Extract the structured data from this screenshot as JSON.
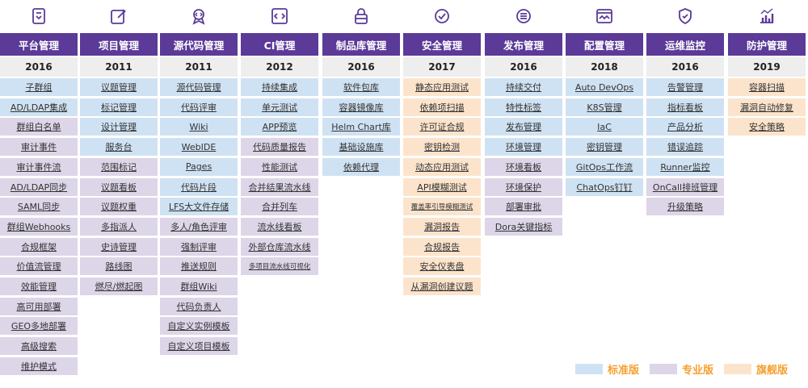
{
  "columns": [
    {
      "title": "平台管理",
      "year": "2016",
      "icon": "platform-icon",
      "items": [
        {
          "label": "子群组",
          "tier": "std"
        },
        {
          "label": "AD/LDAP集成",
          "tier": "std"
        },
        {
          "label": "群组白名单",
          "tier": "pro"
        },
        {
          "label": "审计事件",
          "tier": "pro"
        },
        {
          "label": "审计事件流",
          "tier": "pro"
        },
        {
          "label": "AD/LDAP同步",
          "tier": "pro"
        },
        {
          "label": "SAML同步",
          "tier": "pro"
        },
        {
          "label": "群组Webhooks",
          "tier": "pro"
        },
        {
          "label": "合规框架",
          "tier": "pro"
        },
        {
          "label": "价值流管理",
          "tier": "pro"
        },
        {
          "label": "效能管理",
          "tier": "pro"
        },
        {
          "label": "高可用部署",
          "tier": "pro"
        },
        {
          "label": "GEO多地部署",
          "tier": "pro"
        },
        {
          "label": "高级搜索",
          "tier": "pro"
        },
        {
          "label": "维护模式",
          "tier": "pro"
        }
      ]
    },
    {
      "title": "项目管理",
      "year": "2011",
      "icon": "edit-icon",
      "items": [
        {
          "label": "议题管理",
          "tier": "std"
        },
        {
          "label": "标记管理",
          "tier": "std"
        },
        {
          "label": "设计管理",
          "tier": "std"
        },
        {
          "label": "服务台",
          "tier": "std"
        },
        {
          "label": "范围标记",
          "tier": "pro"
        },
        {
          "label": "议题看板",
          "tier": "pro"
        },
        {
          "label": "议题权重",
          "tier": "pro"
        },
        {
          "label": "多指派人",
          "tier": "pro"
        },
        {
          "label": "史诗管理",
          "tier": "pro"
        },
        {
          "label": "路线图",
          "tier": "pro"
        },
        {
          "label": "燃尽/燃起图",
          "tier": "pro"
        }
      ]
    },
    {
      "title": "源代码管理",
      "year": "2011",
      "icon": "code-badge-icon",
      "items": [
        {
          "label": "源代码管理",
          "tier": "std"
        },
        {
          "label": "代码评审",
          "tier": "std"
        },
        {
          "label": "Wiki",
          "tier": "std"
        },
        {
          "label": "WebIDE",
          "tier": "std"
        },
        {
          "label": "Pages",
          "tier": "std"
        },
        {
          "label": "代码片段",
          "tier": "std"
        },
        {
          "label": "LFS大文件存储",
          "tier": "std"
        },
        {
          "label": "多人/角色评审",
          "tier": "pro"
        },
        {
          "label": "强制评审",
          "tier": "pro"
        },
        {
          "label": "推送规则",
          "tier": "pro"
        },
        {
          "label": "群组Wiki",
          "tier": "pro"
        },
        {
          "label": "代码负责人",
          "tier": "pro"
        },
        {
          "label": "自定义实例模板",
          "tier": "pro"
        },
        {
          "label": "自定义项目模板",
          "tier": "pro"
        }
      ]
    },
    {
      "title": "CI管理",
      "year": "2012",
      "icon": "code-window-icon",
      "items": [
        {
          "label": "持续集成",
          "tier": "std"
        },
        {
          "label": "单元测试",
          "tier": "std"
        },
        {
          "label": "APP预览",
          "tier": "std"
        },
        {
          "label": "代码质量报告",
          "tier": "pro"
        },
        {
          "label": "性能测试",
          "tier": "pro"
        },
        {
          "label": "合并结果流水线",
          "tier": "pro"
        },
        {
          "label": "合并列车",
          "tier": "pro"
        },
        {
          "label": "流水线看板",
          "tier": "pro"
        },
        {
          "label": "外部仓库流水线",
          "tier": "pro"
        },
        {
          "label": "多项目流水线可视化",
          "tier": "pro",
          "small": true
        }
      ]
    },
    {
      "title": "制品库管理",
      "year": "2016",
      "icon": "lock-icon",
      "items": [
        {
          "label": "软件包库",
          "tier": "std"
        },
        {
          "label": "容器镜像库",
          "tier": "std"
        },
        {
          "label": "Helm Chart库",
          "tier": "std"
        },
        {
          "label": "基础设施库",
          "tier": "std"
        },
        {
          "label": "依赖代理",
          "tier": "std"
        }
      ]
    },
    {
      "title": "安全管理",
      "year": "2017",
      "icon": "security-check-icon",
      "items": [
        {
          "label": "静态应用测试",
          "tier": "flag"
        },
        {
          "label": "依赖项扫描",
          "tier": "flag"
        },
        {
          "label": "许可证合规",
          "tier": "flag"
        },
        {
          "label": "密钥检测",
          "tier": "flag"
        },
        {
          "label": "动态应用测试",
          "tier": "flag"
        },
        {
          "label": "API模糊测试",
          "tier": "flag"
        },
        {
          "label": "覆盖率引导模糊测试",
          "tier": "flag",
          "small": true
        },
        {
          "label": "漏洞报告",
          "tier": "flag"
        },
        {
          "label": "合规报告",
          "tier": "flag"
        },
        {
          "label": "安全仪表盘",
          "tier": "flag"
        },
        {
          "label": "从漏洞创建议题",
          "tier": "flag"
        }
      ]
    },
    {
      "title": "发布管理",
      "year": "2016",
      "icon": "release-icon",
      "items": [
        {
          "label": "持续交付",
          "tier": "std"
        },
        {
          "label": "特性标签",
          "tier": "std"
        },
        {
          "label": "发布管理",
          "tier": "std"
        },
        {
          "label": "环境管理",
          "tier": "std"
        },
        {
          "label": "环境看板",
          "tier": "pro"
        },
        {
          "label": "环境保护",
          "tier": "pro"
        },
        {
          "label": "部署审批",
          "tier": "pro"
        },
        {
          "label": "Dora关键指标",
          "tier": "pro"
        }
      ]
    },
    {
      "title": "配置管理",
      "year": "2018",
      "icon": "monitor-icon",
      "items": [
        {
          "label": "Auto DevOps",
          "tier": "std"
        },
        {
          "label": "K8S管理",
          "tier": "std"
        },
        {
          "label": "IaC",
          "tier": "std"
        },
        {
          "label": "密钥管理",
          "tier": "std"
        },
        {
          "label": "GitOps工作流",
          "tier": "std"
        },
        {
          "label": "ChatOps钉钉",
          "tier": "std"
        }
      ]
    },
    {
      "title": "运维监控",
      "year": "2016",
      "icon": "shield-icon",
      "items": [
        {
          "label": "告警管理",
          "tier": "std"
        },
        {
          "label": "指标看板",
          "tier": "std"
        },
        {
          "label": "产品分析",
          "tier": "std"
        },
        {
          "label": "错误追踪",
          "tier": "std"
        },
        {
          "label": "Runner监控",
          "tier": "std"
        },
        {
          "label": "OnCall排班管理",
          "tier": "pro"
        },
        {
          "label": "升级策略",
          "tier": "pro"
        }
      ]
    },
    {
      "title": "防护管理",
      "year": "2019",
      "icon": "bar-chart-icon",
      "items": [
        {
          "label": "容器扫描",
          "tier": "flag"
        },
        {
          "label": "漏洞自动修复",
          "tier": "flag"
        },
        {
          "label": "安全策略",
          "tier": "flag"
        }
      ]
    }
  ],
  "legend": [
    {
      "label": "标准版",
      "tier": "std"
    },
    {
      "label": "专业版",
      "tier": "pro"
    },
    {
      "label": "旗舰版",
      "tier": "flag"
    }
  ],
  "colors": {
    "header": "#5b3a98",
    "icon": "#5b3a98",
    "std": "#cfe2f3",
    "pro": "#ddd5e8",
    "flag": "#fce4cc",
    "legend_text": "#f4a030"
  }
}
